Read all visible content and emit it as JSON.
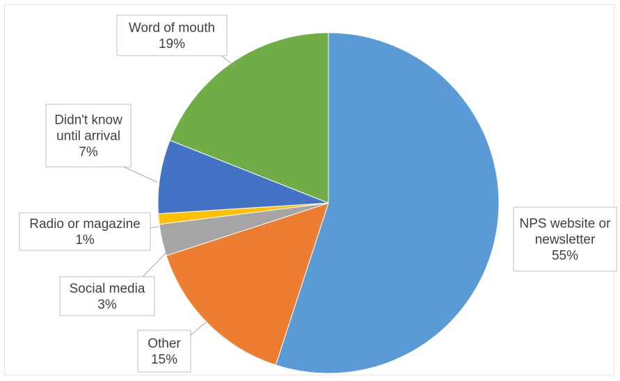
{
  "chart_data": {
    "type": "pie",
    "slices": [
      {
        "label_lines": [
          "NPS website or",
          "newsletter"
        ],
        "pct_text": "55%",
        "value": 55,
        "color": "#5b9bd5"
      },
      {
        "label_lines": [
          "Other"
        ],
        "pct_text": "15%",
        "value": 15,
        "color": "#ed7d31"
      },
      {
        "label_lines": [
          "Social media"
        ],
        "pct_text": "3%",
        "value": 3,
        "color": "#a5a5a5"
      },
      {
        "label_lines": [
          "Radio or magazine"
        ],
        "pct_text": "1%",
        "value": 1,
        "color": "#ffc000"
      },
      {
        "label_lines": [
          "Didn't know",
          "until arrival"
        ],
        "pct_text": "7%",
        "value": 7,
        "color": "#4472c4"
      },
      {
        "label_lines": [
          "Word of mouth"
        ],
        "pct_text": "19%",
        "value": 19,
        "color": "#70ad47"
      }
    ]
  }
}
